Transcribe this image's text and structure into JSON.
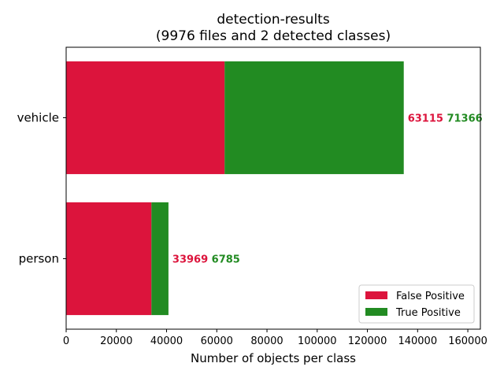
{
  "chart_data": {
    "type": "bar",
    "orientation": "horizontal",
    "stacked": true,
    "title": "detection-results",
    "subtitle": "(9976 files and 2 detected classes)",
    "xlabel": "Number of objects per class",
    "ylabel": "",
    "categories": [
      "vehicle",
      "person"
    ],
    "series": [
      {
        "name": "False Positive",
        "values": [
          63115,
          33969
        ],
        "color": "#dc143c"
      },
      {
        "name": "True Positive",
        "values": [
          71366,
          6785
        ],
        "color": "#228b22"
      }
    ],
    "xlim": [
      0,
      165000
    ],
    "xticks": [
      0,
      20000,
      40000,
      60000,
      80000,
      100000,
      120000,
      140000,
      160000
    ],
    "data_labels": [
      {
        "category": "vehicle",
        "fp": "63115",
        "tp": "71366"
      },
      {
        "category": "person",
        "fp": "33969",
        "tp": "6785"
      }
    ],
    "legend": {
      "position": "lower-right",
      "entries": [
        "False Positive",
        "True Positive"
      ]
    },
    "grid": false
  }
}
